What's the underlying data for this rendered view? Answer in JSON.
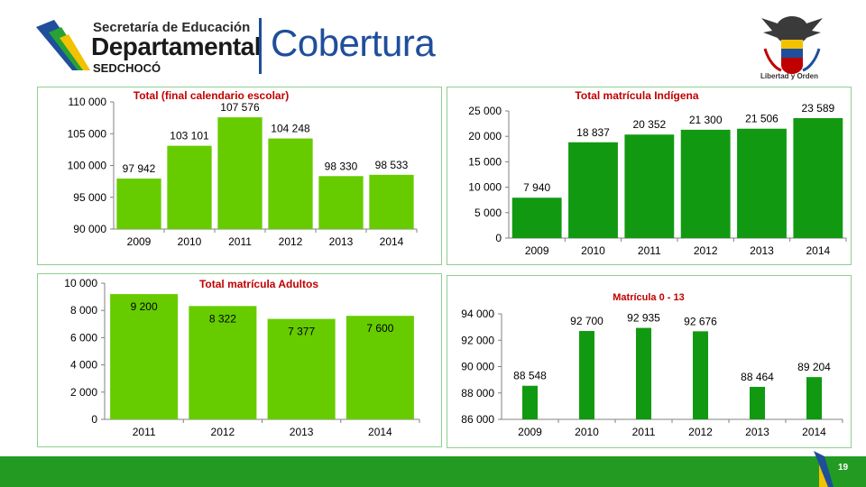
{
  "header": {
    "logo_line1": "Secretaría de Educación",
    "logo_line2": "Departamental",
    "logo_line3": "SEDCHOCÓ",
    "page_heading": "Cobertura",
    "crest_caption": "Libertad y Orden"
  },
  "footer": {
    "page_number": "19"
  },
  "colors": {
    "green_bar": "#66cc00",
    "dark_green_bar": "#119a11",
    "title_red": "#c00000",
    "footer_green": "#239b23"
  },
  "chart_data": [
    {
      "type": "bar",
      "title": "Total (final calendario escolar)",
      "categories": [
        "2009",
        "2010",
        "2011",
        "2012",
        "2013",
        "2014"
      ],
      "values": [
        97942,
        103101,
        107576,
        104248,
        98330,
        98533
      ],
      "value_labels": [
        "97 942",
        "103 101",
        "107 576",
        "104 248",
        "98 330",
        "98 533"
      ],
      "ylim": [
        90000,
        110000
      ],
      "yticks": [
        90000,
        95000,
        100000,
        105000,
        110000
      ],
      "ytick_labels": [
        "90 000",
        "95 000",
        "100 000",
        "105 000",
        "110 000"
      ],
      "label_position": "above",
      "color": "#66cc00",
      "xlabel": "",
      "ylabel": "",
      "grid": false,
      "legend": "none"
    },
    {
      "type": "bar",
      "title": "Total matrícula Indígena",
      "categories": [
        "2009",
        "2010",
        "2011",
        "2012",
        "2013",
        "2014"
      ],
      "values": [
        7940,
        18837,
        20352,
        21300,
        21506,
        23589
      ],
      "value_labels": [
        "7 940",
        "18 837",
        "20 352",
        "21 300",
        "21 506",
        "23 589"
      ],
      "ylim": [
        0,
        25000
      ],
      "yticks": [
        0,
        5000,
        10000,
        15000,
        20000,
        25000
      ],
      "ytick_labels": [
        "0",
        "5 000",
        "10 000",
        "15 000",
        "20 000",
        "25 000"
      ],
      "label_position": "above",
      "color": "#119a11",
      "xlabel": "",
      "ylabel": "",
      "grid": false,
      "legend": "none"
    },
    {
      "type": "bar",
      "title": "Total matrícula Adultos",
      "categories": [
        "2011",
        "2012",
        "2013",
        "2014"
      ],
      "values": [
        9200,
        8322,
        7377,
        7600
      ],
      "value_labels": [
        "9 200",
        "8 322",
        "7 377",
        "7 600"
      ],
      "ylim": [
        0,
        10000
      ],
      "yticks": [
        0,
        2000,
        4000,
        6000,
        8000,
        10000
      ],
      "ytick_labels": [
        "0",
        "2 000",
        "4 000",
        "6 000",
        "8 000",
        "10 000"
      ],
      "label_position": "inside",
      "color": "#66cc00",
      "xlabel": "",
      "ylabel": "",
      "grid": false,
      "legend": "none"
    },
    {
      "type": "bar",
      "title": "Matrícula 0 - 13",
      "categories": [
        "2009",
        "2010",
        "2011",
        "2012",
        "2013",
        "2014"
      ],
      "values": [
        88548,
        92700,
        92935,
        92676,
        88464,
        89204
      ],
      "value_labels": [
        "88 548",
        "92 700",
        "92 935",
        "92 676",
        "88 464",
        "89 204"
      ],
      "ylim": [
        86000,
        94000
      ],
      "yticks": [
        86000,
        88000,
        90000,
        92000,
        94000
      ],
      "ytick_labels": [
        "86 000",
        "88 000",
        "90 000",
        "92 000",
        "94 000"
      ],
      "label_position": "above",
      "color": "#119a11",
      "xlabel": "",
      "ylabel": "",
      "grid": false,
      "legend": "none"
    }
  ]
}
